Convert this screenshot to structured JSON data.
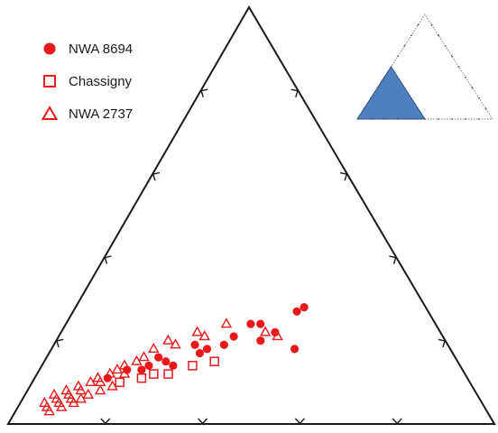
{
  "chart_data": {
    "type": "scatter",
    "subtype": "ternary",
    "title": "",
    "axis_labels": [],
    "legend_position": "top-left",
    "inset": "small triangle at top-right; blue region marks the enlarged part of the full diagram",
    "colors": {
      "marker": "#e8191b",
      "axes": "#1a1a1a",
      "inset_fill": "#4f7fbe",
      "inset_stroke": "#2e4f7a"
    },
    "series": [
      {
        "name": "NWA 8694",
        "marker": "filled-circle",
        "points": [
          [
            0.15,
            0.11
          ],
          [
            0.18,
            0.13
          ],
          [
            0.21,
            0.13
          ],
          [
            0.23,
            0.16
          ],
          [
            0.27,
            0.14
          ],
          [
            0.29,
            0.19
          ],
          [
            0.32,
            0.18
          ],
          [
            0.36,
            0.21
          ],
          [
            0.38,
            0.24
          ],
          [
            0.4,
            0.24
          ],
          [
            0.44,
            0.22
          ],
          [
            0.46,
            0.27
          ],
          [
            0.47,
            0.28
          ],
          [
            0.42,
            0.2
          ],
          [
            0.35,
            0.19
          ],
          [
            0.31,
            0.17
          ],
          [
            0.25,
            0.15
          ],
          [
            0.22,
            0.14
          ],
          [
            0.5,
            0.18
          ]
        ]
      },
      {
        "name": "Chassigny",
        "marker": "open-square",
        "points": [
          [
            0.18,
            0.1
          ],
          [
            0.22,
            0.11
          ],
          [
            0.27,
            0.12
          ],
          [
            0.31,
            0.14
          ],
          [
            0.35,
            0.15
          ],
          [
            0.24,
            0.12
          ]
        ]
      },
      {
        "name": "NWA 2737",
        "marker": "open-triangle",
        "points": [
          [
            0.05,
            0.05
          ],
          [
            0.06,
            0.07
          ],
          [
            0.07,
            0.06
          ],
          [
            0.08,
            0.08
          ],
          [
            0.09,
            0.07
          ],
          [
            0.1,
            0.09
          ],
          [
            0.11,
            0.08
          ],
          [
            0.12,
            0.1
          ],
          [
            0.13,
            0.11
          ],
          [
            0.14,
            0.1
          ],
          [
            0.15,
            0.12
          ],
          [
            0.16,
            0.13
          ],
          [
            0.17,
            0.14
          ],
          [
            0.18,
            0.12
          ],
          [
            0.19,
            0.15
          ],
          [
            0.2,
            0.16
          ],
          [
            0.21,
            0.18
          ],
          [
            0.23,
            0.2
          ],
          [
            0.25,
            0.19
          ],
          [
            0.28,
            0.22
          ],
          [
            0.3,
            0.21
          ],
          [
            0.33,
            0.24
          ],
          [
            0.42,
            0.22
          ],
          [
            0.45,
            0.21
          ],
          [
            0.09,
            0.04
          ],
          [
            0.11,
            0.05
          ],
          [
            0.13,
            0.07
          ],
          [
            0.15,
            0.08
          ],
          [
            0.17,
            0.09
          ],
          [
            0.12,
            0.06
          ],
          [
            0.1,
            0.06
          ],
          [
            0.08,
            0.05
          ],
          [
            0.07,
            0.03
          ],
          [
            0.06,
            0.04
          ]
        ]
      }
    ]
  }
}
